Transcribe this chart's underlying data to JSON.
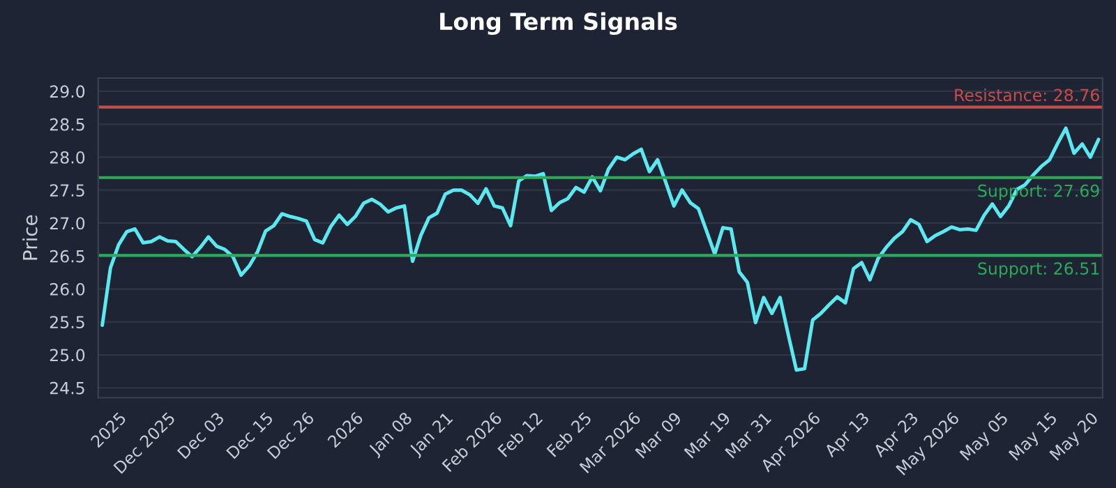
{
  "chart_data": {
    "type": "line",
    "title": "Long Term Signals",
    "ylabel": "Price",
    "categories": [
      null,
      null,
      "2025",
      null,
      null,
      null,
      null,
      null,
      "Dec 2025",
      null,
      null,
      null,
      null,
      null,
      "Dec 03",
      null,
      null,
      null,
      null,
      null,
      "Dec 15",
      null,
      null,
      null,
      null,
      "Dec 26",
      null,
      null,
      null,
      null,
      null,
      "2026",
      null,
      null,
      null,
      null,
      null,
      "Jan 08",
      null,
      null,
      null,
      null,
      "Jan 21",
      null,
      null,
      null,
      null,
      null,
      "Feb 2026",
      null,
      null,
      null,
      null,
      "Feb 12",
      null,
      null,
      null,
      null,
      null,
      "Feb 25",
      null,
      null,
      null,
      null,
      null,
      "Mar 2026",
      null,
      null,
      null,
      null,
      "Mar 09",
      null,
      null,
      null,
      null,
      null,
      "Mar 19",
      null,
      null,
      null,
      null,
      "Mar 31",
      null,
      null,
      null,
      null,
      null,
      "Apr 2026",
      null,
      null,
      null,
      null,
      null,
      "Apr 13",
      null,
      null,
      null,
      null,
      null,
      "Apr 23",
      null,
      null,
      null,
      null,
      "May 2026",
      null,
      null,
      null,
      null,
      null,
      "May 05",
      null,
      null,
      null,
      null,
      null,
      "May 15",
      null,
      null,
      null,
      null,
      "May 20",
      null
    ],
    "series": [
      {
        "color": "#5ce8f0",
        "values": [
          25.45,
          26.32,
          26.67,
          26.87,
          26.91,
          26.7,
          26.72,
          26.79,
          26.73,
          26.72,
          26.6,
          26.49,
          26.63,
          26.79,
          26.65,
          26.6,
          26.49,
          26.21,
          26.35,
          26.56,
          26.88,
          26.96,
          27.14,
          27.1,
          27.07,
          27.03,
          26.75,
          26.7,
          26.95,
          27.12,
          26.98,
          27.1,
          27.3,
          27.36,
          27.29,
          27.17,
          27.23,
          27.26,
          26.42,
          26.81,
          27.08,
          27.15,
          27.44,
          27.5,
          27.5,
          27.43,
          27.3,
          27.52,
          27.26,
          27.23,
          26.96,
          27.64,
          27.72,
          27.71,
          27.75,
          27.19,
          27.31,
          27.37,
          27.54,
          27.47,
          27.7,
          27.49,
          27.82,
          28.0,
          27.96,
          28.05,
          28.12,
          27.78,
          27.96,
          27.62,
          27.26,
          27.5,
          27.31,
          27.22,
          26.88,
          26.53,
          26.93,
          26.91,
          26.26,
          26.1,
          25.49,
          25.87,
          25.63,
          25.87,
          25.31,
          24.77,
          24.79,
          25.53,
          25.63,
          25.76,
          25.88,
          25.79,
          26.31,
          26.4,
          26.14,
          26.46,
          26.63,
          26.77,
          26.87,
          27.05,
          26.98,
          26.72,
          26.81,
          26.87,
          26.94,
          26.9,
          26.91,
          26.89,
          27.12,
          27.29,
          27.1,
          27.26,
          27.51,
          27.58,
          27.73,
          27.86,
          27.96,
          28.21,
          28.44,
          28.06,
          28.2,
          28.0,
          28.27
        ]
      }
    ],
    "ylim": [
      24.35,
      29.2
    ],
    "yticks": [
      24.5,
      {
        "value": 25,
        "label": "25.0"
      },
      25.5,
      {
        "value": 26,
        "label": "26.0"
      },
      26.5,
      {
        "value": 27,
        "label": "27.0"
      },
      27.5,
      {
        "value": 28,
        "label": "28.0"
      },
      28.5,
      {
        "value": 29,
        "label": "29.0"
      }
    ],
    "ref_lines": [
      {
        "axis": "y",
        "value": 28.76,
        "label": "Resistance: 28.76",
        "color": "#c84b4b"
      },
      {
        "axis": "y",
        "value": 27.69,
        "label": "Support: 27.69",
        "color": "#2ea85a"
      },
      {
        "axis": "y",
        "value": 26.51,
        "label": "Support: 26.51",
        "color": "#2ea85a"
      }
    ],
    "grid": "y",
    "line_style": "solid",
    "marker": "none"
  }
}
